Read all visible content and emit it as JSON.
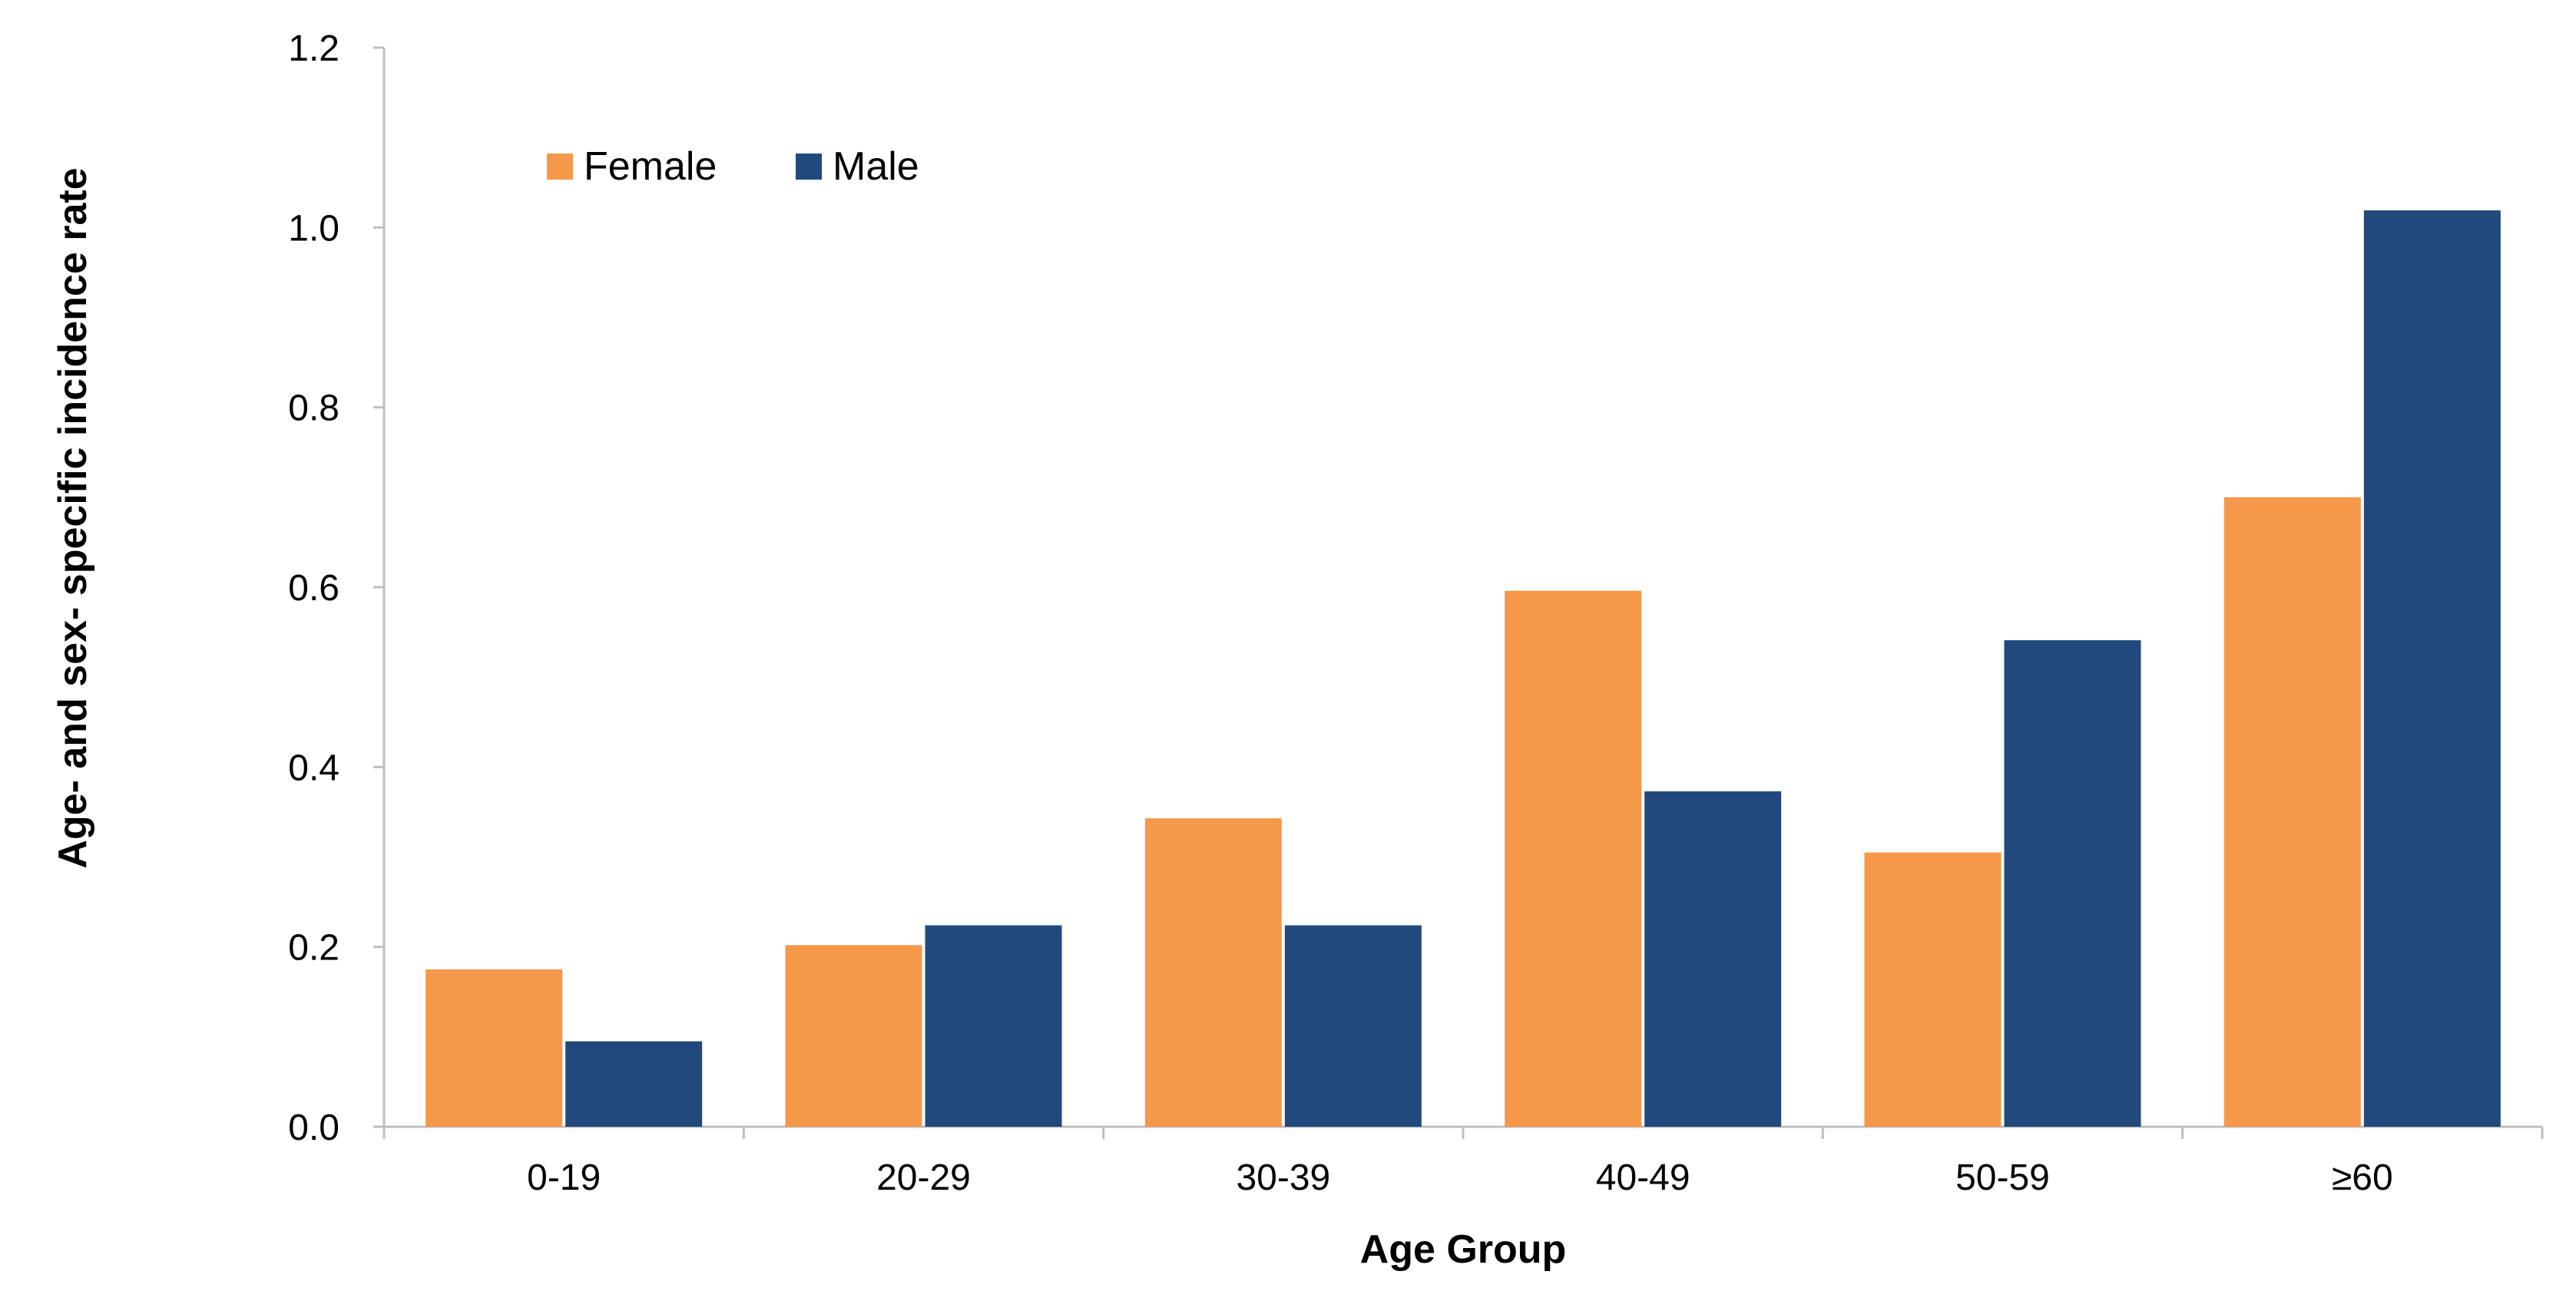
{
  "chart_data": {
    "type": "bar",
    "title": "",
    "xlabel": "Age Group",
    "ylabel": "Age- and sex- specific incidence rate",
    "categories": [
      "0-19",
      "20-29",
      "30-39",
      "40-49",
      "50-59",
      "≥60"
    ],
    "series": [
      {
        "name": "Female",
        "color": "#F5984A",
        "values": [
          0.175,
          0.202,
          0.343,
          0.596,
          0.305,
          0.7
        ]
      },
      {
        "name": "Male",
        "color": "#21497C",
        "values": [
          0.095,
          0.224,
          0.224,
          0.373,
          0.541,
          1.019
        ]
      }
    ],
    "ylim": [
      0,
      1.2
    ],
    "yticks": [
      "0.0",
      "0.2",
      "0.4",
      "0.6",
      "0.8",
      "1.0",
      "1.2"
    ],
    "grid": false,
    "legend": {
      "position": "top-left",
      "entries": [
        "Female",
        "Male"
      ]
    }
  }
}
